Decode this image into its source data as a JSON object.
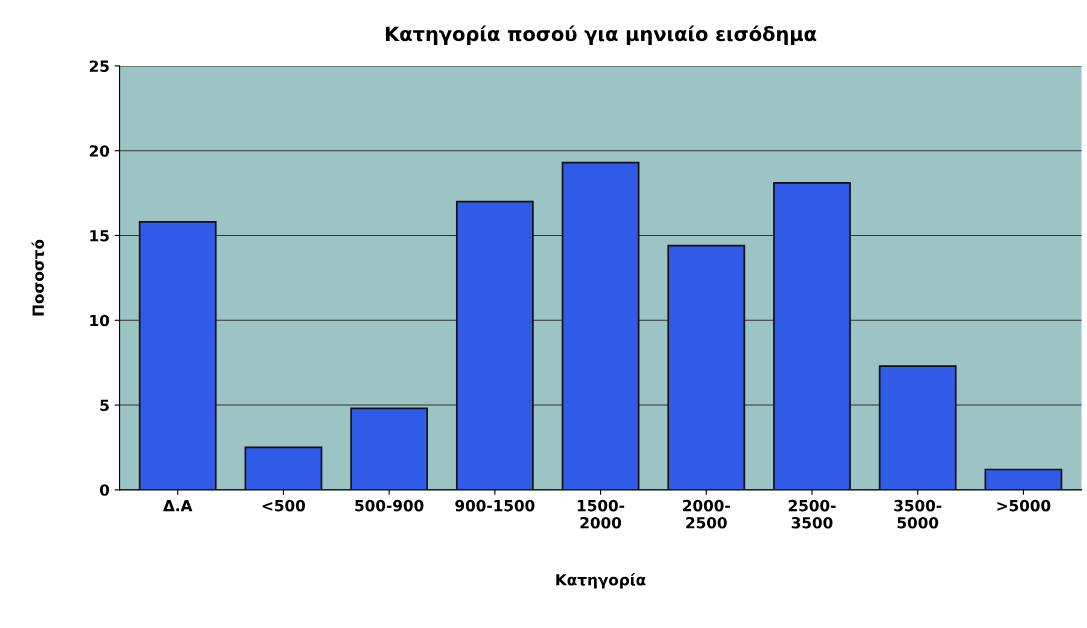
{
  "chart_data": {
    "type": "bar",
    "title": "Κατηγορία ποσού για μηνιαίο εισόδημα",
    "xlabel": "Κατηγορία",
    "ylabel": "Ποσοστό",
    "categories": [
      "Δ.Α",
      "<500",
      "500-900",
      "900-1500",
      "1500-\n2000",
      "2000-\n2500",
      "2500-\n3500",
      "3500-\n5000",
      ">5000"
    ],
    "values": [
      15.8,
      2.5,
      4.8,
      17.0,
      19.3,
      14.4,
      18.1,
      7.3,
      1.2
    ],
    "color": "#2f5be6",
    "ylim": [
      0,
      25
    ],
    "yticks": [
      0,
      5,
      10,
      15,
      20,
      25
    ],
    "grid": "y"
  }
}
